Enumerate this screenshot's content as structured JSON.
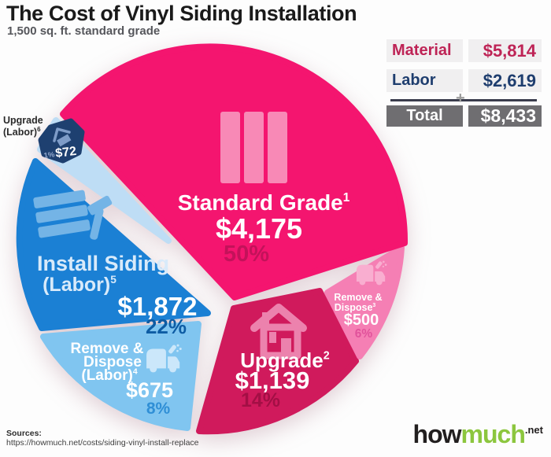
{
  "header": {
    "title": "The Cost of Vinyl Siding Installation",
    "subtitle": "1,500 sq. ft. standard grade"
  },
  "summary_table": {
    "rows": [
      {
        "label": "Material",
        "value": "$5,814",
        "color": "#be2456"
      },
      {
        "label": "Labor",
        "value": "$2,619",
        "color": "#1e3d6e"
      }
    ],
    "plus": "+",
    "total": {
      "label": "Total",
      "value": "$8,433"
    },
    "row_bg": "#f0eff0",
    "total_bg": "#6f6e71"
  },
  "chart_data": {
    "type": "pie",
    "title": "The Cost of Vinyl Siding Installation",
    "subtitle": "1,500 sq. ft. standard grade",
    "total_value": 8433,
    "legend_position": "none",
    "slices": [
      {
        "id": "standard-grade",
        "label": "Standard Grade",
        "label_lines": [
          "Standard Grade"
        ],
        "footnote": "1",
        "value": 4175,
        "value_label": "$4,175",
        "pct": 50,
        "pct_label": "50%",
        "color": "#f4156f",
        "icon": "vertical-siding-icon",
        "icon_color": "#f889b6",
        "label_color": "#ffffff",
        "pct_color": "#c3125a"
      },
      {
        "id": "install-siding-labor",
        "label": "Install Siding (Labor)",
        "label_lines": [
          "Install Siding",
          "(Labor)"
        ],
        "footnote": "5",
        "value": 1872,
        "value_label": "$1,872",
        "pct": 22,
        "pct_label": "22%",
        "color": "#1b80d4",
        "icon": "siding-hammer-icon",
        "icon_color": "#74b4e6",
        "label_color": "#d8eafa",
        "pct_color": "#0d5ca4"
      },
      {
        "id": "remove-dispose-labor",
        "label": "Remove & Dispose (Labor)",
        "label_lines": [
          "Remove &",
          "Dispose",
          "(Labor)"
        ],
        "footnote": "4",
        "value": 675,
        "value_label": "$675",
        "pct": 8,
        "pct_label": "8%",
        "color": "#80c5f0",
        "icon": "garbage-truck-icon",
        "icon_color": "#cbe7fa",
        "label_color": "#ffffff",
        "pct_color": "#2f8fd6"
      },
      {
        "id": "upgrade",
        "label": "Upgrade",
        "label_lines": [
          "Upgrade"
        ],
        "footnote": "2",
        "value": 1139,
        "value_label": "$1,139",
        "pct": 14,
        "pct_label": "14%",
        "color": "#d01a5c",
        "icon": "house-icon",
        "icon_color": "#ec82ad",
        "label_color": "#ffffff",
        "pct_color": "#a30f45"
      },
      {
        "id": "remove-dispose",
        "label": "Remove & Dispose",
        "label_lines": [
          "Remove &",
          "Dispose"
        ],
        "footnote": "3",
        "value": 500,
        "value_label": "$500",
        "pct": 6,
        "pct_label": "6%",
        "color": "#f57fb4",
        "icon": "garbage-truck-icon",
        "icon_color": "#f9aed0",
        "label_color": "#ffffff",
        "pct_color": "#e1529b"
      },
      {
        "id": "upgrade-labor",
        "label": "Upgrade (Labor)",
        "label_lines": [
          "Upgrade",
          "(Labor)"
        ],
        "footnote": "6",
        "value": 72,
        "value_label": "$72",
        "pct": 1,
        "pct_label": "1%",
        "color": "#bedDf5",
        "badge_color": "#1e4070",
        "icon": "tilted-house-icon",
        "icon_color": "#7e9cc8",
        "label_color": "#ffffff",
        "pct_color": "#93a9ce"
      }
    ]
  },
  "footer": {
    "sources_label": "Sources:",
    "source_url": "https://howmuch.net/costs/siding-vinyl-install-replace"
  },
  "logo": {
    "part1": "how",
    "part2": "much",
    "suffix": ".net",
    "part2_color": "#8cc63e"
  }
}
